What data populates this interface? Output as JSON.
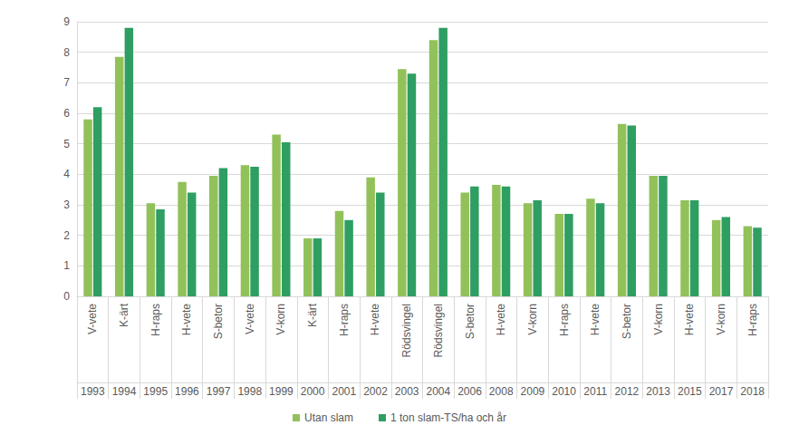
{
  "chart_data": {
    "type": "bar",
    "categories": [
      "V-vete",
      "K-ärt",
      "H-raps",
      "H-vete",
      "S-betor",
      "V-vete",
      "V-korn",
      "K-ärt",
      "H-raps",
      "H-vete",
      "Rödsvingel",
      "Rödsvingel",
      "S-betor",
      "H-vete",
      "V-korn",
      "H-raps",
      "H-vete",
      "S-betor",
      "V-korn",
      "H-vete",
      "V-korn",
      "H-raps"
    ],
    "category_years": [
      "1993",
      "1994",
      "1995",
      "1996",
      "1997",
      "1998",
      "1999",
      "2000",
      "2001",
      "2002",
      "2003",
      "2004",
      "2006",
      "2008",
      "2009",
      "2010",
      "2011",
      "2012",
      "2013",
      "2015",
      "2017",
      "2018"
    ],
    "series": [
      {
        "name": "Utan slam",
        "color": "#92c15a",
        "values": [
          5.8,
          7.85,
          3.05,
          3.75,
          3.95,
          4.3,
          5.3,
          1.9,
          2.8,
          3.9,
          7.45,
          8.4,
          3.4,
          3.65,
          3.05,
          2.7,
          3.2,
          5.65,
          3.95,
          3.15,
          2.5,
          2.3
        ]
      },
      {
        "name": "1 ton slam-TS/ha och år",
        "color": "#2f9e62",
        "values": [
          6.2,
          8.8,
          2.85,
          3.4,
          4.2,
          4.25,
          5.05,
          1.9,
          2.5,
          3.4,
          7.3,
          8.8,
          3.6,
          3.6,
          3.15,
          2.7,
          3.05,
          5.6,
          3.95,
          3.15,
          2.6,
          2.25
        ]
      }
    ],
    "ylim": [
      0,
      9
    ],
    "yticks": [
      0,
      1,
      2,
      3,
      4,
      5,
      6,
      7,
      8,
      9
    ],
    "grid": true,
    "legend": "bottom"
  }
}
